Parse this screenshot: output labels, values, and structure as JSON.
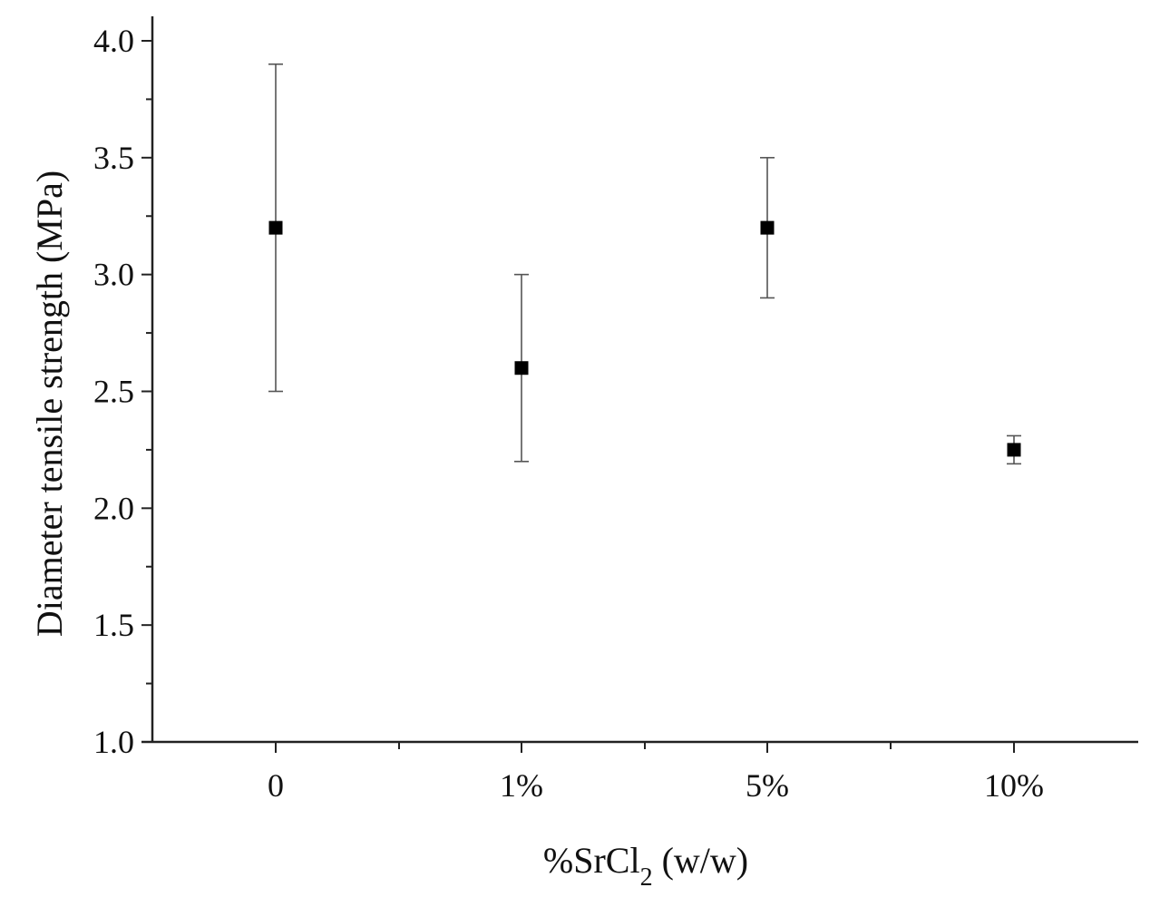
{
  "chart_data": {
    "type": "scatter",
    "title": "",
    "xlabel": {
      "prefix": "%SrCl",
      "subscript": "2",
      "suffix": " (w/w)"
    },
    "ylabel": "Diameter tensile strength (MPa)",
    "categories": [
      "0",
      "1%",
      "5%",
      "10%"
    ],
    "ylim": [
      1.0,
      4.0
    ],
    "yticks": [
      "1.0",
      "1.5",
      "2.0",
      "2.5",
      "3.0",
      "3.5",
      "4.0"
    ],
    "series": [
      {
        "values": [
          3.2,
          2.6,
          3.2,
          2.25
        ],
        "error_low": [
          2.5,
          2.2,
          2.9,
          2.19
        ],
        "error_high": [
          3.9,
          3.0,
          3.5,
          2.31
        ],
        "marker": "square",
        "color": "#000000"
      }
    ],
    "grid": false,
    "legend": "none"
  }
}
